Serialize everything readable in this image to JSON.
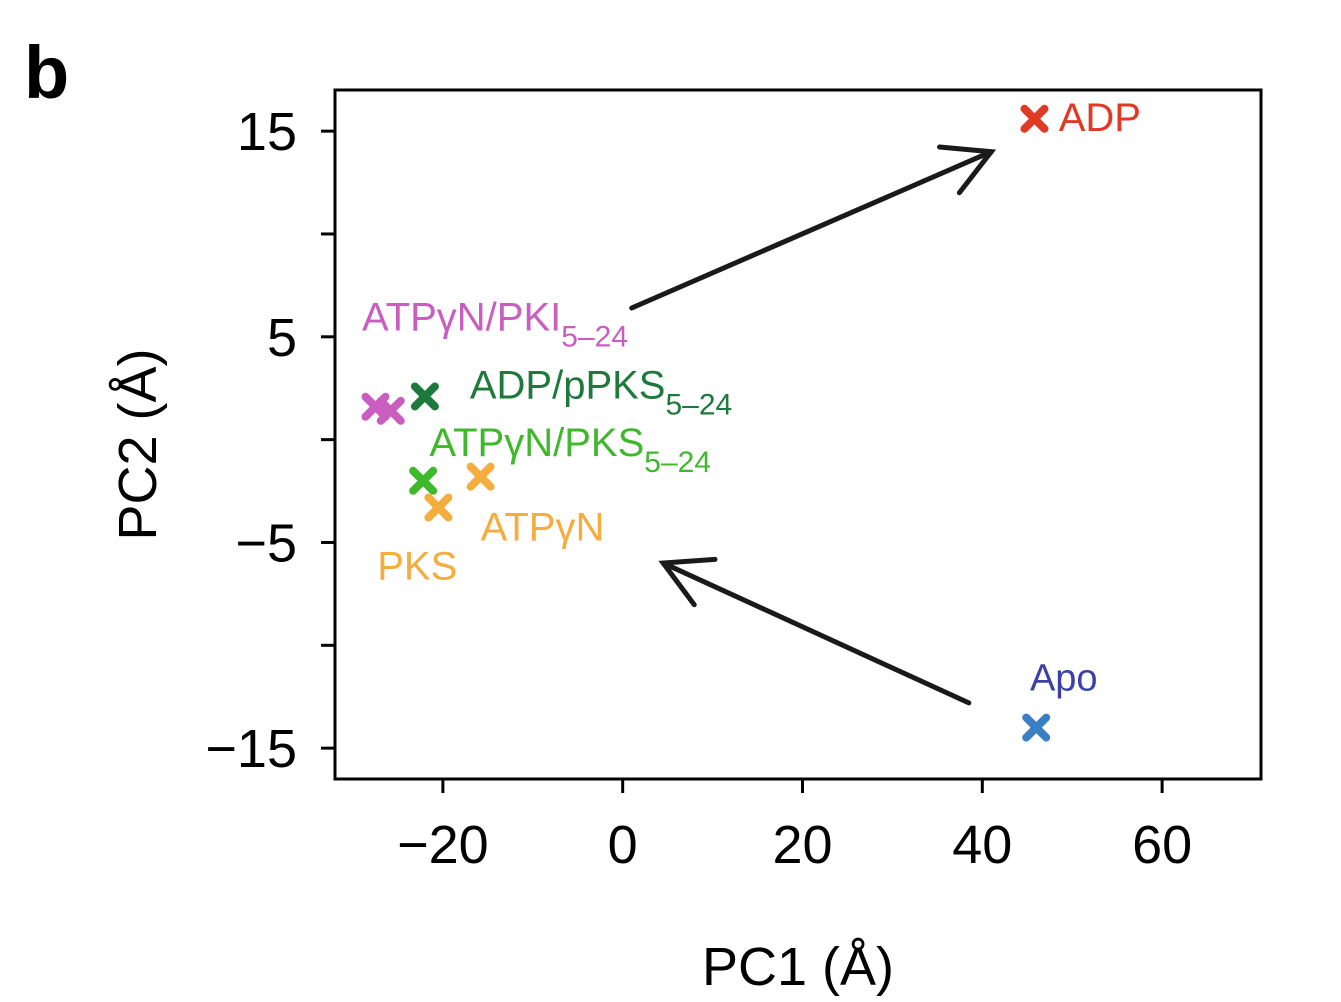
{
  "panel_label": "b",
  "chart_data": {
    "type": "scatter",
    "title": "",
    "xlabel": "PC1 (Å)",
    "ylabel": "PC2  (Å)",
    "xlim": [
      -32,
      71
    ],
    "ylim": [
      -16.5,
      17
    ],
    "xticks": [
      -20,
      0,
      20,
      40,
      60
    ],
    "xtick_labels": [
      "−20",
      "0",
      "20",
      "40",
      "60"
    ],
    "yticks": [
      15,
      10,
      5,
      0,
      -5,
      -10,
      -15
    ],
    "ytick_labels": [
      "15",
      "",
      "5",
      "",
      "−5",
      "",
      "−15"
    ],
    "grid": false,
    "legend": "none",
    "marker": "x",
    "points": [
      {
        "label": "ADP",
        "x": 45.8,
        "y": 15.6,
        "color": "#e03a24"
      },
      {
        "label": "Apo",
        "x": 46.0,
        "y": -14.0,
        "color": "#3a7fc4"
      },
      {
        "label": "ATPγN/PKI5–24",
        "x": -27.5,
        "y": 1.6,
        "color": "#c95ec0"
      },
      {
        "label": "ATPγN/PKI5–24",
        "x": -25.8,
        "y": 1.4,
        "color": "#c95ec0"
      },
      {
        "label": "ADP/pPKS5–24",
        "x": -22.0,
        "y": 2.1,
        "color": "#1e7a3c"
      },
      {
        "label": "ATPγN/PKS5–24",
        "x": -22.2,
        "y": -2.0,
        "color": "#3fb82c"
      },
      {
        "label": "ATPγN",
        "x": -15.8,
        "y": -1.8,
        "color": "#f5ad40"
      },
      {
        "label": "PKS",
        "x": -20.5,
        "y": -3.3,
        "color": "#f5ad40"
      }
    ],
    "annotations": [
      {
        "kind": "text",
        "text": "ADP",
        "x": 48.5,
        "y": 15.0,
        "color": "#e03a24",
        "size": 40
      },
      {
        "kind": "text",
        "text": "Apo",
        "x": 45.3,
        "y": -12.2,
        "color": "#3b3fa6",
        "size": 38
      },
      {
        "kind": "text",
        "text": "ATPγN/PKI",
        "subscript": "5–24",
        "x": -29.0,
        "y": 5.3,
        "color": "#c95ec0",
        "size": 40
      },
      {
        "kind": "text",
        "text": "ADP/pPKS",
        "subscript": "5–24",
        "x": -17.0,
        "y": 2.0,
        "color": "#1e7a3c",
        "size": 40
      },
      {
        "kind": "text",
        "text": "ATPγN/PKS",
        "subscript": "5–24",
        "x": -21.5,
        "y": -0.8,
        "color": "#3fb82c",
        "size": 40
      },
      {
        "kind": "text",
        "text": "ATPγN",
        "x": -15.8,
        "y": -4.9,
        "color": "#f5ad40",
        "size": 40
      },
      {
        "kind": "text",
        "text": "PKS",
        "x": -27.3,
        "y": -6.8,
        "color": "#f5ad40",
        "size": 40
      },
      {
        "kind": "arrow",
        "from": [
          1,
          6.4
        ],
        "to": [
          41,
          14
        ],
        "color": "#1a1a1a"
      },
      {
        "kind": "arrow",
        "from": [
          38.5,
          -12.8
        ],
        "to": [
          4.5,
          -6.0
        ],
        "color": "#1a1a1a"
      }
    ]
  }
}
